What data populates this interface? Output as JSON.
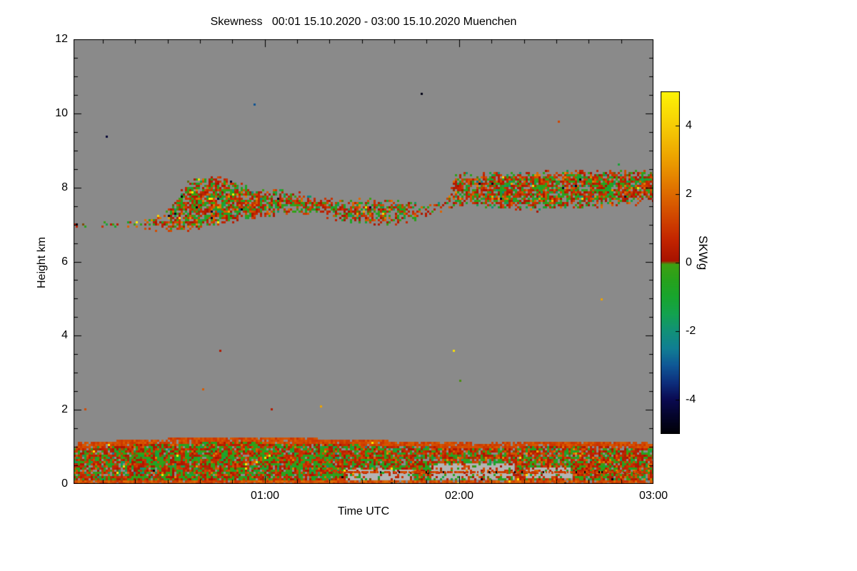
{
  "page": {
    "background": "#ffffff"
  },
  "chart_data": {
    "type": "heatmap",
    "title": "Skewness   00:01 15.10.2020 - 03:00 15.10.2020 Muenchen",
    "xlabel": "Time UTC",
    "ylabel": "Height km",
    "colorbar_label": "SKWg",
    "station": "Muenchen",
    "time_range_minutes": [
      1,
      180
    ],
    "x_ticks": [
      {
        "minutes": 60,
        "label": "01:00"
      },
      {
        "minutes": 120,
        "label": "02:00"
      },
      {
        "minutes": 180,
        "label": "03:00"
      }
    ],
    "x_minor_step_minutes": 10,
    "ylim": [
      0,
      12
    ],
    "y_ticks": [
      0,
      2,
      4,
      6,
      8,
      10,
      12
    ],
    "y_minor_step_km": 0.5,
    "no_data_color": "#8a8a8a",
    "frame_color": "#000000",
    "seed": 20201015,
    "colorbar": {
      "range": [
        -5,
        5
      ],
      "ticks": [
        4,
        2,
        0,
        -2,
        -4
      ],
      "stops": [
        [
          -5.0,
          "#000006"
        ],
        [
          -4.5,
          "#04042a"
        ],
        [
          -4.0,
          "#0a0a52"
        ],
        [
          -3.5,
          "#0d2f7d"
        ],
        [
          -3.0,
          "#0f5896"
        ],
        [
          -2.5,
          "#107f93"
        ],
        [
          -2.0,
          "#119178"
        ],
        [
          -1.5,
          "#13a24f"
        ],
        [
          -1.0,
          "#18a52e"
        ],
        [
          -0.5,
          "#27a21c"
        ],
        [
          -0.05,
          "#3da012"
        ],
        [
          0.05,
          "#a81200"
        ],
        [
          0.7,
          "#c42600"
        ],
        [
          1.5,
          "#d44f00"
        ],
        [
          2.3,
          "#e27a00"
        ],
        [
          3.1,
          "#eda400"
        ],
        [
          4.0,
          "#f6cd05"
        ],
        [
          5.0,
          "#fdf405"
        ]
      ]
    },
    "layers": {
      "cloud_band": {
        "comment": "mid-level cloud layer, skewness speckle near 0",
        "points": [
          [
            0.0,
            6.88,
            7.14,
            0.5
          ],
          [
            0.05,
            6.9,
            7.1,
            0.28
          ],
          [
            0.09,
            6.95,
            7.08,
            0.15
          ],
          [
            0.12,
            6.85,
            7.15,
            0.4
          ],
          [
            0.16,
            6.78,
            7.45,
            0.55
          ],
          [
            0.2,
            6.8,
            8.25,
            0.8
          ],
          [
            0.245,
            7.0,
            8.35,
            0.85
          ],
          [
            0.3,
            7.1,
            8.05,
            0.8
          ],
          [
            0.36,
            7.2,
            7.95,
            0.75
          ],
          [
            0.42,
            7.25,
            7.8,
            0.7
          ],
          [
            0.48,
            7.0,
            7.72,
            0.72
          ],
          [
            0.55,
            6.95,
            7.68,
            0.7
          ],
          [
            0.6,
            7.1,
            7.62,
            0.5
          ],
          [
            0.635,
            7.3,
            7.6,
            0.45
          ],
          [
            0.66,
            7.5,
            8.4,
            0.7
          ],
          [
            0.72,
            7.45,
            8.45,
            0.82
          ],
          [
            0.8,
            7.35,
            8.45,
            0.85
          ],
          [
            0.9,
            7.45,
            8.5,
            0.85
          ],
          [
            1.0,
            7.55,
            8.5,
            0.85
          ]
        ],
        "value_mean": 0.3,
        "value_sd": 0.95,
        "outlier_prob": 0.012
      },
      "boundary_layer": {
        "points": [
          [
            0.0,
            1.12,
            0.93
          ],
          [
            0.12,
            1.22,
            0.93
          ],
          [
            0.25,
            1.28,
            0.94
          ],
          [
            0.4,
            1.25,
            0.92
          ],
          [
            0.55,
            1.18,
            0.9
          ],
          [
            0.7,
            1.12,
            0.9
          ],
          [
            0.85,
            1.18,
            0.92
          ],
          [
            1.0,
            1.12,
            0.92
          ]
        ],
        "value_mean": 0.15,
        "value_sd": 0.85
      },
      "bright_patches": {
        "color": "#b4b4b4",
        "density": 0.3,
        "rects": [
          {
            "u0": 0.47,
            "u1": 0.585,
            "h0": 0.1,
            "h1": 0.42
          },
          {
            "u0": 0.615,
            "u1": 0.76,
            "h0": 0.12,
            "h1": 0.55
          },
          {
            "u0": 0.78,
            "u1": 0.86,
            "h0": 0.15,
            "h1": 0.45
          }
        ]
      },
      "red_line": {
        "u0": 0.44,
        "u1": 0.985,
        "h_km": 0.33,
        "value": 1.2,
        "density": 0.8
      },
      "speck_rows": [
        {
          "h": 3.6,
          "u0": 0.0,
          "u1": 1.0,
          "density": 0.012
        },
        {
          "h": 2.02,
          "u0": 0.0,
          "u1": 0.42,
          "density": 0.006
        },
        {
          "h": 2.02,
          "u0": 0.95,
          "u1": 1.0,
          "density": 0.01
        }
      ],
      "stray_prob": 0.00015,
      "extra_points": [
        {
          "u": 0.835,
          "h_km": 9.8,
          "v": 1.3
        }
      ]
    }
  }
}
